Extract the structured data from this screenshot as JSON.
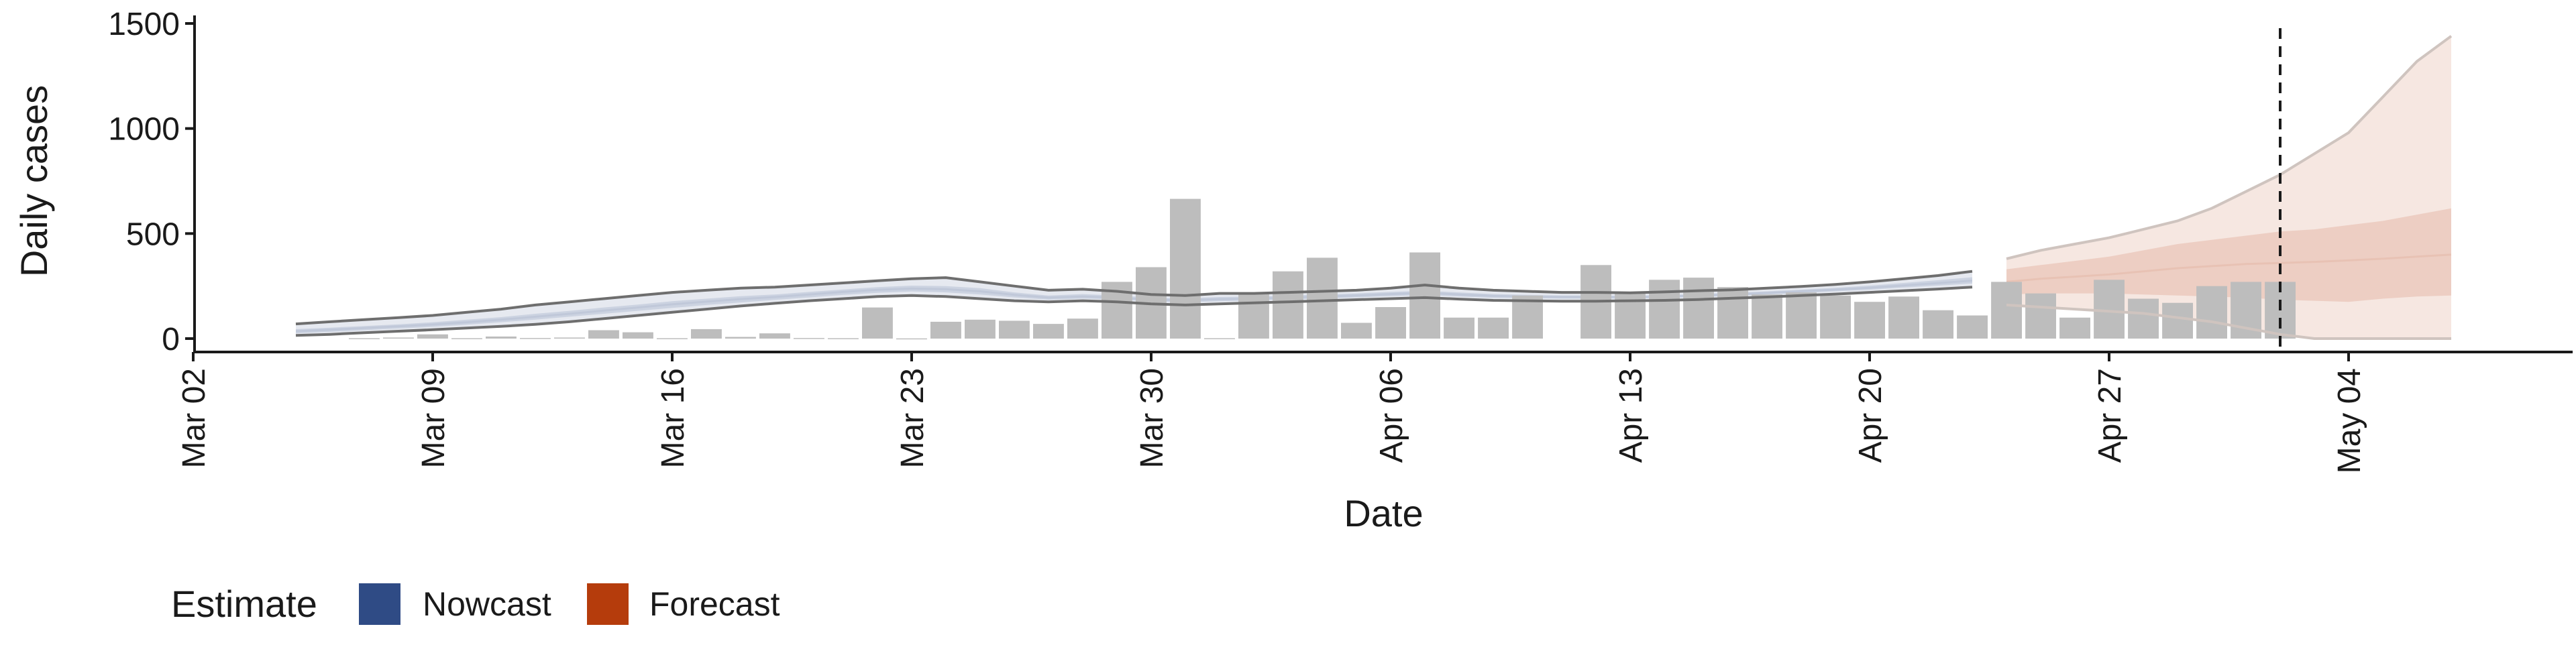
{
  "chart_data": {
    "type": "bar",
    "xlabel": "Date",
    "ylabel": "Daily cases",
    "ylim": [
      0,
      1500
    ],
    "xlim": [
      "2020-03-01",
      "2020-05-10"
    ],
    "y_ticks": [
      0,
      500,
      1000,
      1500
    ],
    "x_ticks": [
      {
        "date": "2020-03-02",
        "label": "Mar 02"
      },
      {
        "date": "2020-03-09",
        "label": "Mar 09"
      },
      {
        "date": "2020-03-16",
        "label": "Mar 16"
      },
      {
        "date": "2020-03-23",
        "label": "Mar 23"
      },
      {
        "date": "2020-03-30",
        "label": "Mar 30"
      },
      {
        "date": "2020-04-06",
        "label": "Apr 06"
      },
      {
        "date": "2020-04-13",
        "label": "Apr 13"
      },
      {
        "date": "2020-04-20",
        "label": "Apr 20"
      },
      {
        "date": "2020-04-27",
        "label": "Apr 27"
      },
      {
        "date": "2020-05-04",
        "label": "May 04"
      }
    ],
    "reference_line_date": "2020-05-02",
    "grid": false,
    "legend": {
      "title": "Estimate",
      "position": "bottom-left",
      "items": [
        {
          "label": "Nowcast",
          "color": "#2F4B85"
        },
        {
          "label": "Forecast",
          "color": "#B53C0C"
        }
      ]
    },
    "bars": {
      "color": "#BDBDBD",
      "dates": [
        "2020-03-07",
        "2020-03-08",
        "2020-03-09",
        "2020-03-10",
        "2020-03-11",
        "2020-03-12",
        "2020-03-13",
        "2020-03-14",
        "2020-03-15",
        "2020-03-16",
        "2020-03-17",
        "2020-03-18",
        "2020-03-19",
        "2020-03-20",
        "2020-03-21",
        "2020-03-22",
        "2020-03-23",
        "2020-03-24",
        "2020-03-25",
        "2020-03-26",
        "2020-03-27",
        "2020-03-28",
        "2020-03-29",
        "2020-03-30",
        "2020-03-31",
        "2020-04-01",
        "2020-04-02",
        "2020-04-03",
        "2020-04-04",
        "2020-04-05",
        "2020-04-06",
        "2020-04-07",
        "2020-04-08",
        "2020-04-09",
        "2020-04-10",
        "2020-04-11",
        "2020-04-12",
        "2020-04-13",
        "2020-04-14",
        "2020-04-15",
        "2020-04-16",
        "2020-04-17",
        "2020-04-18",
        "2020-04-19",
        "2020-04-20",
        "2020-04-21",
        "2020-04-22",
        "2020-04-23",
        "2020-04-24",
        "2020-04-25",
        "2020-04-26",
        "2020-04-27",
        "2020-04-28",
        "2020-04-29",
        "2020-04-30",
        "2020-05-01",
        "2020-05-02"
      ],
      "values": [
        2,
        5,
        20,
        2,
        10,
        3,
        5,
        40,
        30,
        2,
        45,
        8,
        25,
        3,
        2,
        148,
        1,
        80,
        90,
        85,
        70,
        95,
        270,
        340,
        665,
        2,
        220,
        320,
        385,
        75,
        150,
        410,
        100,
        100,
        205,
        0,
        350,
        215,
        280,
        290,
        245,
        210,
        220,
        205,
        175,
        200,
        135,
        110,
        270,
        215,
        100,
        280,
        190,
        170,
        250,
        270,
        270
      ]
    },
    "series": [
      {
        "name": "Nowcast",
        "color": "#2F4B85",
        "dates": [
          "2020-03-05",
          "2020-03-06",
          "2020-03-07",
          "2020-03-08",
          "2020-03-09",
          "2020-03-10",
          "2020-03-11",
          "2020-03-12",
          "2020-03-13",
          "2020-03-14",
          "2020-03-15",
          "2020-03-16",
          "2020-03-17",
          "2020-03-18",
          "2020-03-19",
          "2020-03-20",
          "2020-03-21",
          "2020-03-22",
          "2020-03-23",
          "2020-03-24",
          "2020-03-25",
          "2020-03-26",
          "2020-03-27",
          "2020-03-28",
          "2020-03-29",
          "2020-03-30",
          "2020-03-31",
          "2020-04-01",
          "2020-04-02",
          "2020-04-03",
          "2020-04-04",
          "2020-04-05",
          "2020-04-06",
          "2020-04-07",
          "2020-04-08",
          "2020-04-09",
          "2020-04-10",
          "2020-04-11",
          "2020-04-12",
          "2020-04-13",
          "2020-04-14",
          "2020-04-15",
          "2020-04-16",
          "2020-04-17",
          "2020-04-18",
          "2020-04-19",
          "2020-04-20",
          "2020-04-21",
          "2020-04-22",
          "2020-04-23"
        ],
        "upper": [
          70,
          80,
          90,
          100,
          110,
          125,
          140,
          160,
          175,
          190,
          205,
          220,
          230,
          240,
          245,
          255,
          265,
          275,
          285,
          290,
          270,
          250,
          230,
          235,
          225,
          210,
          205,
          215,
          215,
          220,
          225,
          230,
          240,
          255,
          240,
          230,
          225,
          220,
          220,
          218,
          222,
          228,
          232,
          240,
          248,
          258,
          270,
          285,
          300,
          320
        ],
        "mid_upper": [
          45,
          52,
          60,
          68,
          78,
          90,
          102,
          118,
          132,
          148,
          162,
          178,
          190,
          202,
          210,
          222,
          234,
          245,
          252,
          250,
          240,
          220,
          205,
          212,
          205,
          195,
          192,
          198,
          200,
          205,
          210,
          215,
          222,
          228,
          220,
          212,
          208,
          205,
          205,
          204,
          207,
          212,
          218,
          225,
          233,
          242,
          252,
          265,
          278,
          292
        ],
        "median": [
          35,
          42,
          50,
          58,
          67,
          78,
          90,
          104,
          118,
          133,
          148,
          163,
          176,
          188,
          198,
          210,
          222,
          232,
          238,
          235,
          225,
          208,
          195,
          200,
          195,
          185,
          182,
          188,
          190,
          195,
          200,
          205,
          212,
          218,
          210,
          203,
          200,
          198,
          198,
          197,
          200,
          205,
          210,
          217,
          225,
          233,
          242,
          253,
          264,
          276
        ],
        "mid_lower": [
          25,
          32,
          40,
          48,
          56,
          66,
          78,
          90,
          104,
          118,
          132,
          146,
          160,
          172,
          184,
          196,
          208,
          218,
          224,
          220,
          210,
          196,
          185,
          190,
          186,
          176,
          173,
          178,
          181,
          186,
          191,
          196,
          202,
          208,
          200,
          194,
          192,
          190,
          190,
          190,
          193,
          198,
          203,
          210,
          217,
          225,
          233,
          243,
          252,
          262
        ],
        "lower": [
          15,
          20,
          28,
          35,
          42,
          50,
          58,
          68,
          80,
          95,
          110,
          125,
          140,
          155,
          168,
          180,
          190,
          200,
          205,
          200,
          190,
          180,
          175,
          180,
          175,
          165,
          160,
          165,
          170,
          175,
          180,
          185,
          190,
          195,
          188,
          182,
          180,
          178,
          178,
          180,
          182,
          186,
          192,
          198,
          205,
          212,
          220,
          228,
          236,
          245
        ]
      },
      {
        "name": "Forecast",
        "color": "#B53C0C",
        "dates": [
          "2020-04-24",
          "2020-04-25",
          "2020-04-26",
          "2020-04-27",
          "2020-04-28",
          "2020-04-29",
          "2020-04-30",
          "2020-05-01",
          "2020-05-02",
          "2020-05-03",
          "2020-05-04",
          "2020-05-05",
          "2020-05-06",
          "2020-05-07"
        ],
        "upper": [
          380,
          420,
          450,
          480,
          520,
          560,
          620,
          700,
          780,
          880,
          980,
          1150,
          1320,
          1440
        ],
        "mid_upper": [
          330,
          350,
          370,
          390,
          420,
          450,
          470,
          490,
          510,
          520,
          540,
          560,
          590,
          620
        ],
        "median": [
          270,
          285,
          295,
          305,
          320,
          335,
          345,
          355,
          360,
          365,
          372,
          380,
          390,
          400
        ],
        "mid_lower": [
          210,
          215,
          215,
          215,
          210,
          205,
          200,
          195,
          185,
          180,
          175,
          190,
          200,
          205
        ],
        "lower": [
          160,
          150,
          140,
          130,
          120,
          100,
          80,
          50,
          20,
          0,
          0,
          0,
          0,
          0
        ]
      }
    ]
  }
}
